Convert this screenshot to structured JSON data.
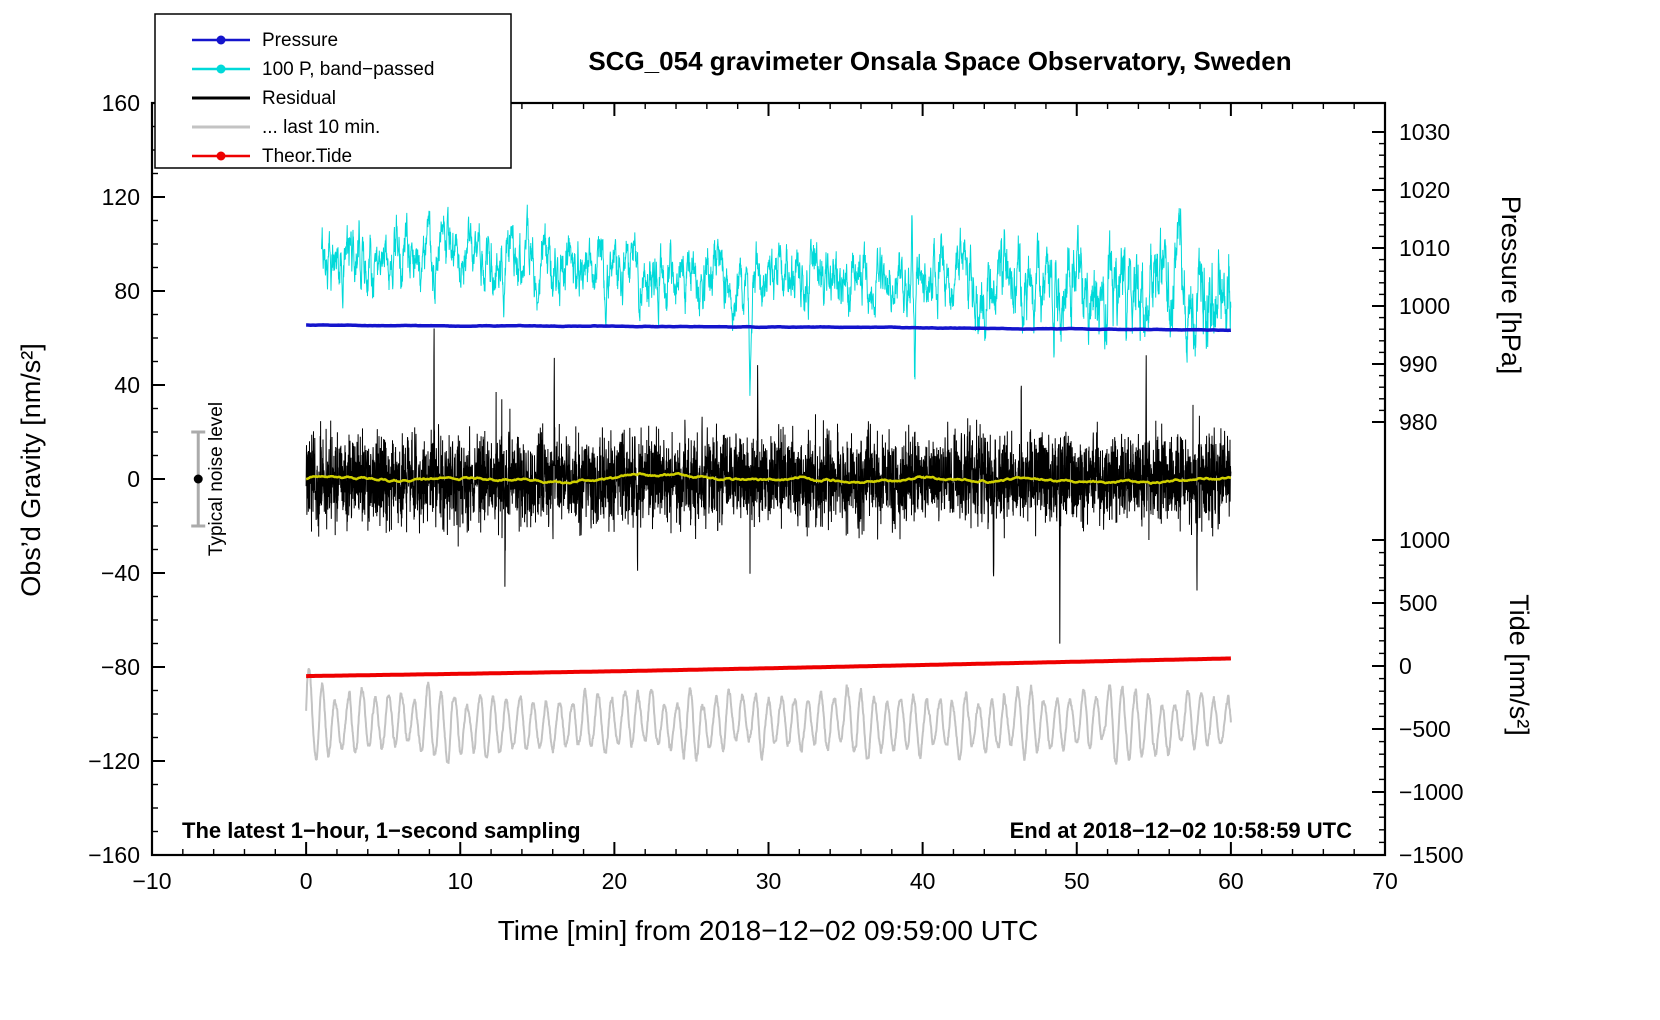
{
  "legend": {
    "items": [
      {
        "label": "Pressure",
        "color": "#1414cc",
        "marker": true
      },
      {
        "label": "100 P, band−passed",
        "color": "#00d9d9",
        "marker": true
      },
      {
        "label": "Residual",
        "color": "#000000",
        "marker": false
      },
      {
        "label": "... last 10 min.",
        "color": "#c3c3c3",
        "marker": false
      },
      {
        "label": "Theor.Tide",
        "color": "#ee0000",
        "marker": true
      }
    ]
  },
  "annotations": {
    "sampling_note": "The latest 1−hour, 1−second sampling",
    "end_note": "End at 2018−12−02 10:58:59 UTC",
    "noise_label": "Typical noise level"
  },
  "chart_data": {
    "type": "line",
    "title": "SCG_054 gravimeter Onsala Space Observatory, Sweden",
    "xlabel": "Time [min] from 2018−12−02 09:59:00 UTC",
    "x_range": [
      -10,
      70
    ],
    "x_ticks": [
      -10,
      0,
      10,
      20,
      30,
      40,
      50,
      60,
      70
    ],
    "axes": {
      "gravity": {
        "label": "Obs’d Gravity [nm/s²]",
        "range": [
          -160,
          160
        ],
        "ticks": [
          -160,
          -120,
          -80,
          -40,
          0,
          40,
          80,
          120,
          160
        ]
      },
      "pressure": {
        "label": "Pressure [hPa]",
        "range_shown": [
          980,
          1030
        ],
        "ticks": [
          980,
          990,
          1000,
          1010,
          1020,
          1030
        ]
      },
      "tide": {
        "label": "Tide [nm/s²]",
        "range_shown": [
          -1500,
          1000
        ],
        "ticks": [
          -1500,
          -1000,
          -500,
          0,
          500,
          1000
        ]
      }
    },
    "series": [
      {
        "name": "Pressure",
        "axis": "pressure",
        "color": "#1414cc",
        "width": 3.5,
        "style": "smooth",
        "x_start": 0,
        "anchors": [
          [
            0,
            996.7
          ],
          [
            15,
            996.55
          ],
          [
            30,
            996.4
          ],
          [
            45,
            996.15
          ],
          [
            60,
            995.85
          ]
        ],
        "noise_amp": 0.05
      },
      {
        "name": "100 P, band-passed",
        "axis": "gravity",
        "color": "#00d9d9",
        "width": 1,
        "style": "noisy-ar",
        "x_start": 1,
        "anchors": [
          [
            1,
            94
          ],
          [
            6,
            95
          ],
          [
            12,
            91
          ],
          [
            20,
            88
          ],
          [
            28,
            86
          ],
          [
            36,
            84
          ],
          [
            44,
            84
          ],
          [
            52,
            81
          ],
          [
            60,
            80
          ]
        ],
        "noise_amp": 6.5,
        "events": [
          [
            28.8,
            -33,
            0.08
          ],
          [
            39.3,
            32,
            0.05
          ],
          [
            39.5,
            -39,
            0.06
          ],
          [
            43.6,
            -26,
            0.07
          ],
          [
            48.5,
            -34,
            0.07
          ],
          [
            53.2,
            -24,
            0.06
          ],
          [
            56.2,
            -30,
            0.07
          ]
        ]
      },
      {
        "name": "Residual",
        "axis": "gravity",
        "color": "#000000",
        "width": 1,
        "style": "white-noise",
        "x_start": 0,
        "anchors": [
          [
            0,
            0
          ],
          [
            60,
            0
          ]
        ],
        "noise_amp": 16,
        "events": [
          [
            8.3,
            55,
            0.02
          ],
          [
            12.9,
            -48,
            0.02
          ],
          [
            16.1,
            44,
            0.02
          ],
          [
            21.5,
            -43,
            0.02
          ],
          [
            29.3,
            42,
            0.02
          ],
          [
            44.6,
            -52,
            0.02
          ],
          [
            46.4,
            50,
            0.02
          ],
          [
            48.9,
            -58,
            0.02
          ],
          [
            54.5,
            45,
            0.02
          ],
          [
            57.8,
            -44,
            0.02
          ]
        ]
      },
      {
        "name": "Residual smoothed",
        "axis": "gravity",
        "color": "#cfcf00",
        "width": 2.5,
        "style": "smooth-wander",
        "x_start": 0,
        "anchors": [
          [
            0,
            0
          ],
          [
            60,
            0
          ]
        ],
        "noise_amp": 2
      },
      {
        "name": "... last 10 min.",
        "axis": "gravity",
        "color": "#c3c3c3",
        "width": 2,
        "style": "oscillation",
        "x_start": 0,
        "anchors": [
          [
            0,
            -104
          ],
          [
            60,
            -104
          ]
        ],
        "osc_amp_min": 9,
        "osc_amp_max": 34,
        "osc_period_min": 0.85
      },
      {
        "name": "Theor.Tide",
        "axis": "tide",
        "color": "#ee0000",
        "width": 4,
        "style": "smooth",
        "x_start": 0,
        "anchors": [
          [
            0,
            -80
          ],
          [
            10,
            -62
          ],
          [
            20,
            -42
          ],
          [
            30,
            -18
          ],
          [
            40,
            8
          ],
          [
            50,
            34
          ],
          [
            60,
            60
          ]
        ],
        "noise_amp": 0
      }
    ],
    "noise_bar": {
      "x_min": -7,
      "center": 0,
      "half_range": 20
    }
  }
}
